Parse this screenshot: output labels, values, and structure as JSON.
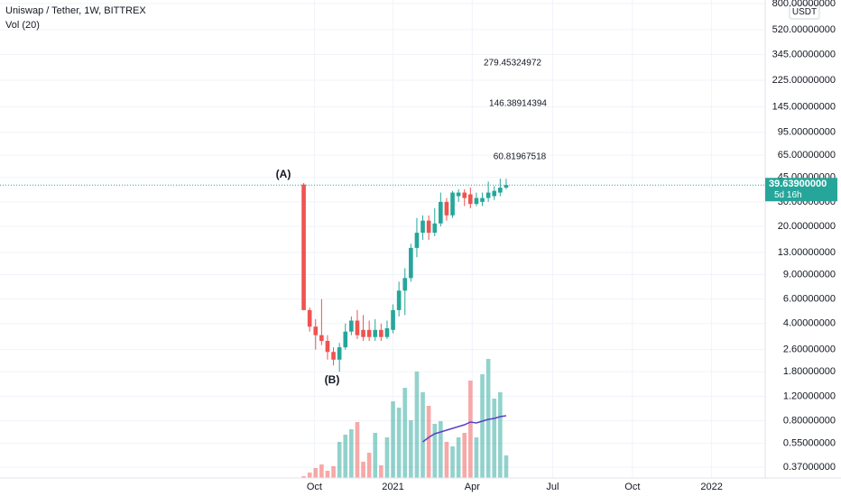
{
  "chart_data": {
    "type": "candlestick",
    "title": "Uniswap / Tether, 1W, BITTREX",
    "indicator": "Vol (20)",
    "currency": "USDT",
    "log_scale": true,
    "grid": true,
    "up_color": "#26a69a",
    "down_color": "#ef5350",
    "x": [
      0,
      1,
      2,
      3,
      4,
      5,
      6,
      7,
      8,
      9,
      10,
      11,
      12,
      13,
      14,
      15,
      16,
      17,
      18,
      19,
      20,
      21,
      22,
      23,
      24,
      25,
      26,
      27,
      28,
      29,
      30,
      31,
      32,
      33,
      34
    ],
    "open": [
      40,
      5,
      3.8,
      3.3,
      3.0,
      2.5,
      2.2,
      2.7,
      3.5,
      4.2,
      3.6,
      3.6,
      3.2,
      3.6,
      3.2,
      3.6,
      5.0,
      6.9,
      8.5,
      14,
      18,
      22,
      18,
      21,
      30,
      24,
      33,
      35,
      34,
      29,
      30,
      32,
      33,
      35,
      38
    ],
    "high": [
      41,
      5.2,
      4.3,
      6,
      3.3,
      2.7,
      2.9,
      4.0,
      4.5,
      5.0,
      4.6,
      4.2,
      4.3,
      4.0,
      4.2,
      5.5,
      8,
      10,
      15,
      23,
      24,
      24,
      27,
      35,
      32,
      36,
      37,
      37,
      38,
      35,
      35,
      42,
      39,
      44,
      44
    ],
    "low": [
      5,
      3.5,
      2.6,
      2.8,
      2.2,
      2.0,
      1.8,
      2.6,
      3.3,
      3.1,
      3.0,
      3.0,
      3.0,
      3.0,
      3.1,
      3.4,
      4.5,
      4.6,
      8,
      12,
      16,
      16,
      17,
      20,
      22,
      23,
      30,
      28,
      27,
      28,
      28,
      30,
      31,
      33,
      37
    ],
    "close": [
      5,
      3.8,
      3.3,
      3.0,
      2.5,
      2.2,
      2.7,
      3.5,
      4.2,
      3.3,
      3.2,
      3.2,
      3.6,
      3.2,
      3.7,
      5.0,
      6.9,
      8.5,
      14,
      18,
      22,
      18,
      21,
      30,
      24,
      35,
      35,
      32,
      29,
      32,
      32,
      35,
      36,
      38,
      39.639
    ],
    "xlim": [
      -51,
      77.5
    ],
    "xticks": [
      {
        "value": 1.8,
        "label": "Oct"
      },
      {
        "value": 15,
        "label": "2021"
      },
      {
        "value": 28.3,
        "label": "Apr"
      },
      {
        "value": 41.8,
        "label": "Jul"
      },
      {
        "value": 55.2,
        "label": "Oct"
      },
      {
        "value": 68.5,
        "label": "2022"
      }
    ],
    "ylim": [
      0.31,
      850
    ],
    "yticks": [
      {
        "value": 800,
        "label": "800.00000000"
      },
      {
        "value": 520,
        "label": "520.00000000"
      },
      {
        "value": 345,
        "label": "345.00000000"
      },
      {
        "value": 225,
        "label": "225.00000000"
      },
      {
        "value": 145,
        "label": "145.00000000"
      },
      {
        "value": 95,
        "label": "95.00000000"
      },
      {
        "value": 65,
        "label": "65.00000000"
      },
      {
        "value": 45,
        "label": "45.00000000"
      },
      {
        "value": 30,
        "label": "30.00000000"
      },
      {
        "value": 20,
        "label": "20.00000000"
      },
      {
        "value": 13,
        "label": "13.00000000"
      },
      {
        "value": 9,
        "label": "9.00000000"
      },
      {
        "value": 6,
        "label": "6.00000000"
      },
      {
        "value": 4,
        "label": "4.00000000"
      },
      {
        "value": 2.6,
        "label": "2.60000000"
      },
      {
        "value": 1.8,
        "label": "1.80000000"
      },
      {
        "value": 1.2,
        "label": "1.20000000"
      },
      {
        "value": 0.8,
        "label": "0.80000000"
      },
      {
        "value": 0.55,
        "label": "0.55000000"
      },
      {
        "value": 0.37,
        "label": "0.37000000"
      }
    ],
    "volume": {
      "ylim": [
        0,
        530
      ],
      "values": [
        2,
        6,
        11,
        15,
        8,
        13,
        40,
        48,
        54,
        62,
        18,
        28,
        50,
        14,
        45,
        85,
        78,
        100,
        64,
        118,
        95,
        80,
        60,
        63,
        40,
        35,
        45,
        50,
        108,
        45,
        115,
        132,
        88,
        95,
        25
      ],
      "ma": [
        null,
        null,
        null,
        null,
        null,
        null,
        null,
        null,
        null,
        null,
        null,
        null,
        null,
        null,
        null,
        null,
        null,
        null,
        null,
        null,
        40,
        45,
        49,
        51,
        53,
        55,
        57,
        59,
        62,
        61,
        63,
        65,
        66,
        68,
        69
      ],
      "ma_color": "#5b3fc4"
    },
    "last_price": {
      "value": 39.639,
      "label": "39.63900000"
    },
    "countdown": "5d 16h",
    "annotations": [
      "(A)",
      "(B)",
      "279.45324972",
      "146.38914394",
      "60.81967518"
    ]
  }
}
